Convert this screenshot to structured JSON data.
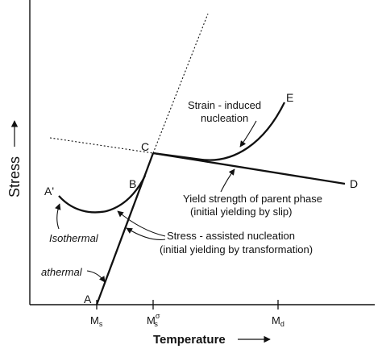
{
  "axes": {
    "x_title": "Temperature",
    "y_title": "Stress",
    "x_ticks": {
      "ms": {
        "base": "M",
        "sub": "s"
      },
      "ms_sigma": {
        "base": "M",
        "sub": "s",
        "sup": "σ"
      },
      "md": {
        "base": "M",
        "sub": "d"
      }
    }
  },
  "points": {
    "A": "A",
    "A_prime": "A'",
    "B": "B",
    "C": "C",
    "D": "D",
    "E": "E"
  },
  "annotations": {
    "strain_induced": [
      "Strain - induced",
      "nucleation"
    ],
    "yield_strength": [
      "Yield strength of parent phase",
      "(initial yielding by slip)"
    ],
    "stress_assisted": [
      "Stress - assisted nucleation",
      "(initial yielding by transformation)"
    ],
    "isothermal": "Isothermal",
    "athermal": "athermal"
  }
}
